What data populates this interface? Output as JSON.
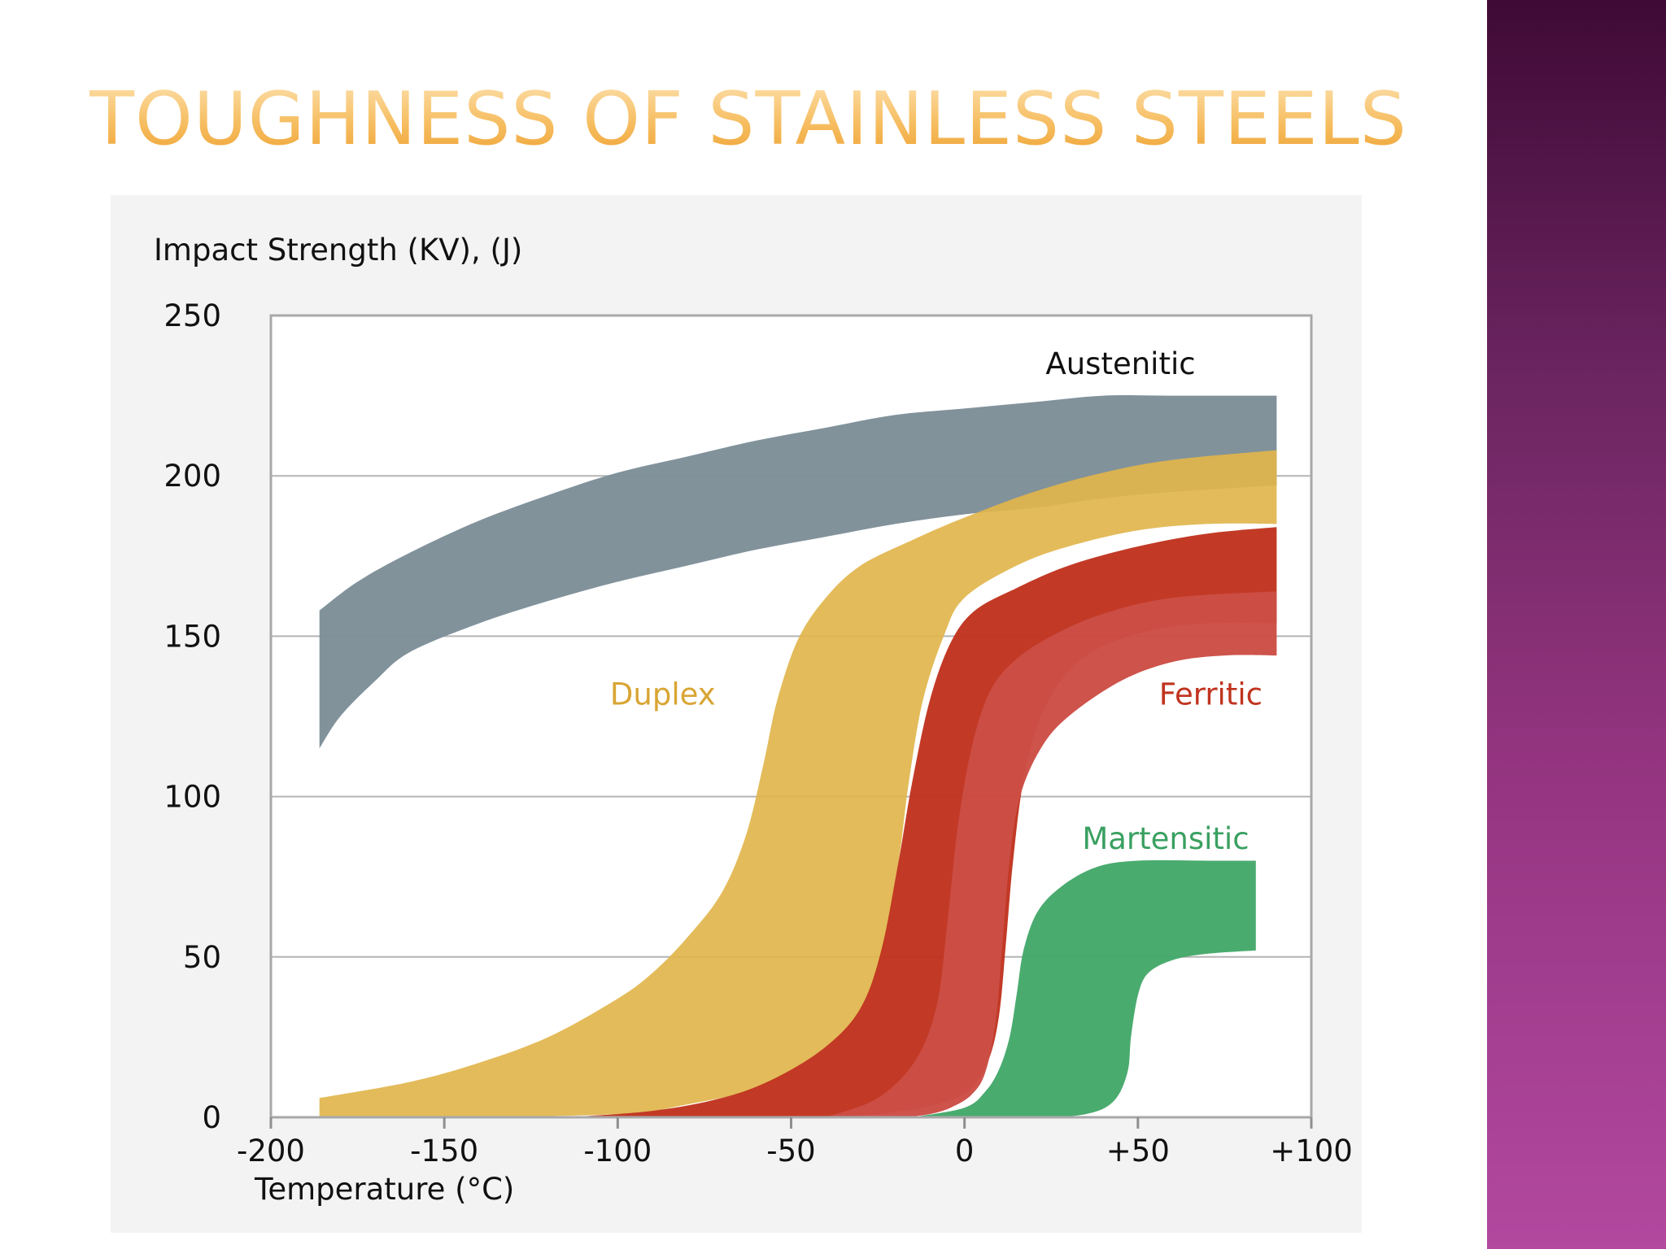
{
  "slide": {
    "title": "TOUGHNESS OF STAINLESS STEELS"
  },
  "chart_data": {
    "type": "area",
    "ylabel": "Impact Strength (KV), (J)",
    "xlabel": "Temperature (°C)",
    "xlim": [
      -200,
      100
    ],
    "ylim": [
      0,
      250
    ],
    "x_ticks": [
      {
        "value": -200,
        "label": "-200"
      },
      {
        "value": -150,
        "label": "-150"
      },
      {
        "value": -100,
        "label": "-100"
      },
      {
        "value": -50,
        "label": "-50"
      },
      {
        "value": 0,
        "label": "0"
      },
      {
        "value": 50,
        "label": "+50"
      },
      {
        "value": 100,
        "label": "+100"
      }
    ],
    "y_ticks": [
      {
        "value": 0,
        "label": "0"
      },
      {
        "value": 50,
        "label": "50"
      },
      {
        "value": 100,
        "label": "100"
      },
      {
        "value": 150,
        "label": "150"
      },
      {
        "value": 200,
        "label": "200"
      },
      {
        "value": 250,
        "label": "250"
      }
    ],
    "grid": "horizontal",
    "series": [
      {
        "name": "Austenitic",
        "color": "#7d8e98",
        "label_color": "#111111",
        "label_at": [
          45,
          235
        ],
        "upper": [
          [
            -186,
            158
          ],
          [
            -175,
            167
          ],
          [
            -160,
            176
          ],
          [
            -140,
            186
          ],
          [
            -120,
            194
          ],
          [
            -100,
            201
          ],
          [
            -80,
            206
          ],
          [
            -60,
            211
          ],
          [
            -40,
            215
          ],
          [
            -20,
            219
          ],
          [
            0,
            221
          ],
          [
            20,
            223
          ],
          [
            40,
            225
          ],
          [
            60,
            225
          ],
          [
            90,
            225
          ]
        ],
        "lower": [
          [
            -186,
            115
          ],
          [
            -180,
            125
          ],
          [
            -170,
            136
          ],
          [
            -160,
            145
          ],
          [
            -140,
            154
          ],
          [
            -120,
            161
          ],
          [
            -100,
            167
          ],
          [
            -80,
            172
          ],
          [
            -60,
            177
          ],
          [
            -40,
            181
          ],
          [
            -20,
            185
          ],
          [
            0,
            188
          ],
          [
            20,
            190
          ],
          [
            40,
            193
          ],
          [
            60,
            195
          ],
          [
            90,
            197
          ]
        ]
      },
      {
        "name": "Duplex",
        "color": "#e1b54c",
        "label_color": "#d9a534",
        "label_at": [
          -87,
          132
        ],
        "upper": [
          [
            -186,
            6
          ],
          [
            -160,
            11
          ],
          [
            -140,
            17
          ],
          [
            -120,
            25
          ],
          [
            -100,
            37
          ],
          [
            -90,
            45
          ],
          [
            -80,
            56
          ],
          [
            -70,
            70
          ],
          [
            -63,
            88
          ],
          [
            -58,
            110
          ],
          [
            -54,
            130
          ],
          [
            -48,
            149
          ],
          [
            -40,
            162
          ],
          [
            -30,
            172
          ],
          [
            -15,
            180
          ],
          [
            0,
            187
          ],
          [
            20,
            195
          ],
          [
            40,
            201
          ],
          [
            60,
            205
          ],
          [
            90,
            208
          ]
        ],
        "lower": [
          [
            -186,
            0
          ],
          [
            -150,
            0
          ],
          [
            -100,
            1
          ],
          [
            -80,
            4
          ],
          [
            -60,
            9
          ],
          [
            -45,
            18
          ],
          [
            -32,
            30
          ],
          [
            -24,
            50
          ],
          [
            -19,
            80
          ],
          [
            -16,
            105
          ],
          [
            -12,
            130
          ],
          [
            -6,
            150
          ],
          [
            0,
            162
          ],
          [
            15,
            172
          ],
          [
            30,
            178
          ],
          [
            50,
            183
          ],
          [
            70,
            185
          ],
          [
            90,
            185
          ]
        ]
      },
      {
        "name": "Ferritic",
        "color": "#c0341f",
        "label_color": "#c0341f",
        "label_at": [
          71,
          132
        ],
        "upper": [
          [
            -115,
            0
          ],
          [
            -90,
            2
          ],
          [
            -70,
            6
          ],
          [
            -55,
            12
          ],
          [
            -40,
            22
          ],
          [
            -30,
            34
          ],
          [
            -24,
            52
          ],
          [
            -19,
            80
          ],
          [
            -15,
            105
          ],
          [
            -10,
            130
          ],
          [
            -4,
            148
          ],
          [
            3,
            158
          ],
          [
            15,
            165
          ],
          [
            30,
            172
          ],
          [
            50,
            178
          ],
          [
            70,
            182
          ],
          [
            90,
            184
          ]
        ],
        "lower": [
          [
            -115,
            0
          ],
          [
            -70,
            0
          ],
          [
            -40,
            0
          ],
          [
            -25,
            1
          ],
          [
            -18,
            2
          ],
          [
            -12,
            3
          ],
          [
            -5,
            5
          ],
          [
            2,
            9
          ],
          [
            7,
            18
          ],
          [
            10,
            32
          ],
          [
            12,
            55
          ],
          [
            14,
            80
          ],
          [
            17,
            105
          ],
          [
            22,
            125
          ],
          [
            30,
            139
          ],
          [
            40,
            147
          ],
          [
            55,
            152
          ],
          [
            70,
            154
          ],
          [
            90,
            154
          ]
        ]
      },
      {
        "name": "Ferritic-band-light",
        "color": "#cc4d45",
        "upper": [
          [
            -40,
            0
          ],
          [
            -25,
            6
          ],
          [
            -14,
            18
          ],
          [
            -8,
            35
          ],
          [
            -5,
            60
          ],
          [
            -2,
            90
          ],
          [
            2,
            115
          ],
          [
            7,
            132
          ],
          [
            14,
            142
          ],
          [
            25,
            150
          ],
          [
            40,
            157
          ],
          [
            60,
            162
          ],
          [
            90,
            164
          ]
        ],
        "lower": [
          [
            -25,
            0
          ],
          [
            -18,
            0
          ],
          [
            -10,
            1
          ],
          [
            -4,
            3
          ],
          [
            2,
            7
          ],
          [
            6,
            14
          ],
          [
            9,
            30
          ],
          [
            11,
            55
          ],
          [
            13,
            80
          ],
          [
            16,
            100
          ],
          [
            22,
            115
          ],
          [
            30,
            125
          ],
          [
            45,
            136
          ],
          [
            60,
            142
          ],
          [
            75,
            144
          ],
          [
            90,
            144
          ]
        ]
      },
      {
        "name": "Martensitic",
        "color": "#44a86a",
        "label_color": "#3aa061",
        "label_at": [
          58,
          87
        ],
        "upper": [
          [
            -15,
            0
          ],
          [
            0,
            3
          ],
          [
            6,
            8
          ],
          [
            10,
            15
          ],
          [
            13,
            25
          ],
          [
            15,
            38
          ],
          [
            17,
            52
          ],
          [
            21,
            64
          ],
          [
            28,
            72
          ],
          [
            38,
            78
          ],
          [
            50,
            80
          ],
          [
            70,
            80
          ],
          [
            84,
            80
          ]
        ],
        "lower": [
          [
            -15,
            0
          ],
          [
            20,
            0
          ],
          [
            35,
            1
          ],
          [
            43,
            5
          ],
          [
            47,
            14
          ],
          [
            48,
            25
          ],
          [
            50,
            38
          ],
          [
            53,
            45
          ],
          [
            60,
            49
          ],
          [
            70,
            51
          ],
          [
            84,
            52
          ]
        ]
      }
    ]
  }
}
